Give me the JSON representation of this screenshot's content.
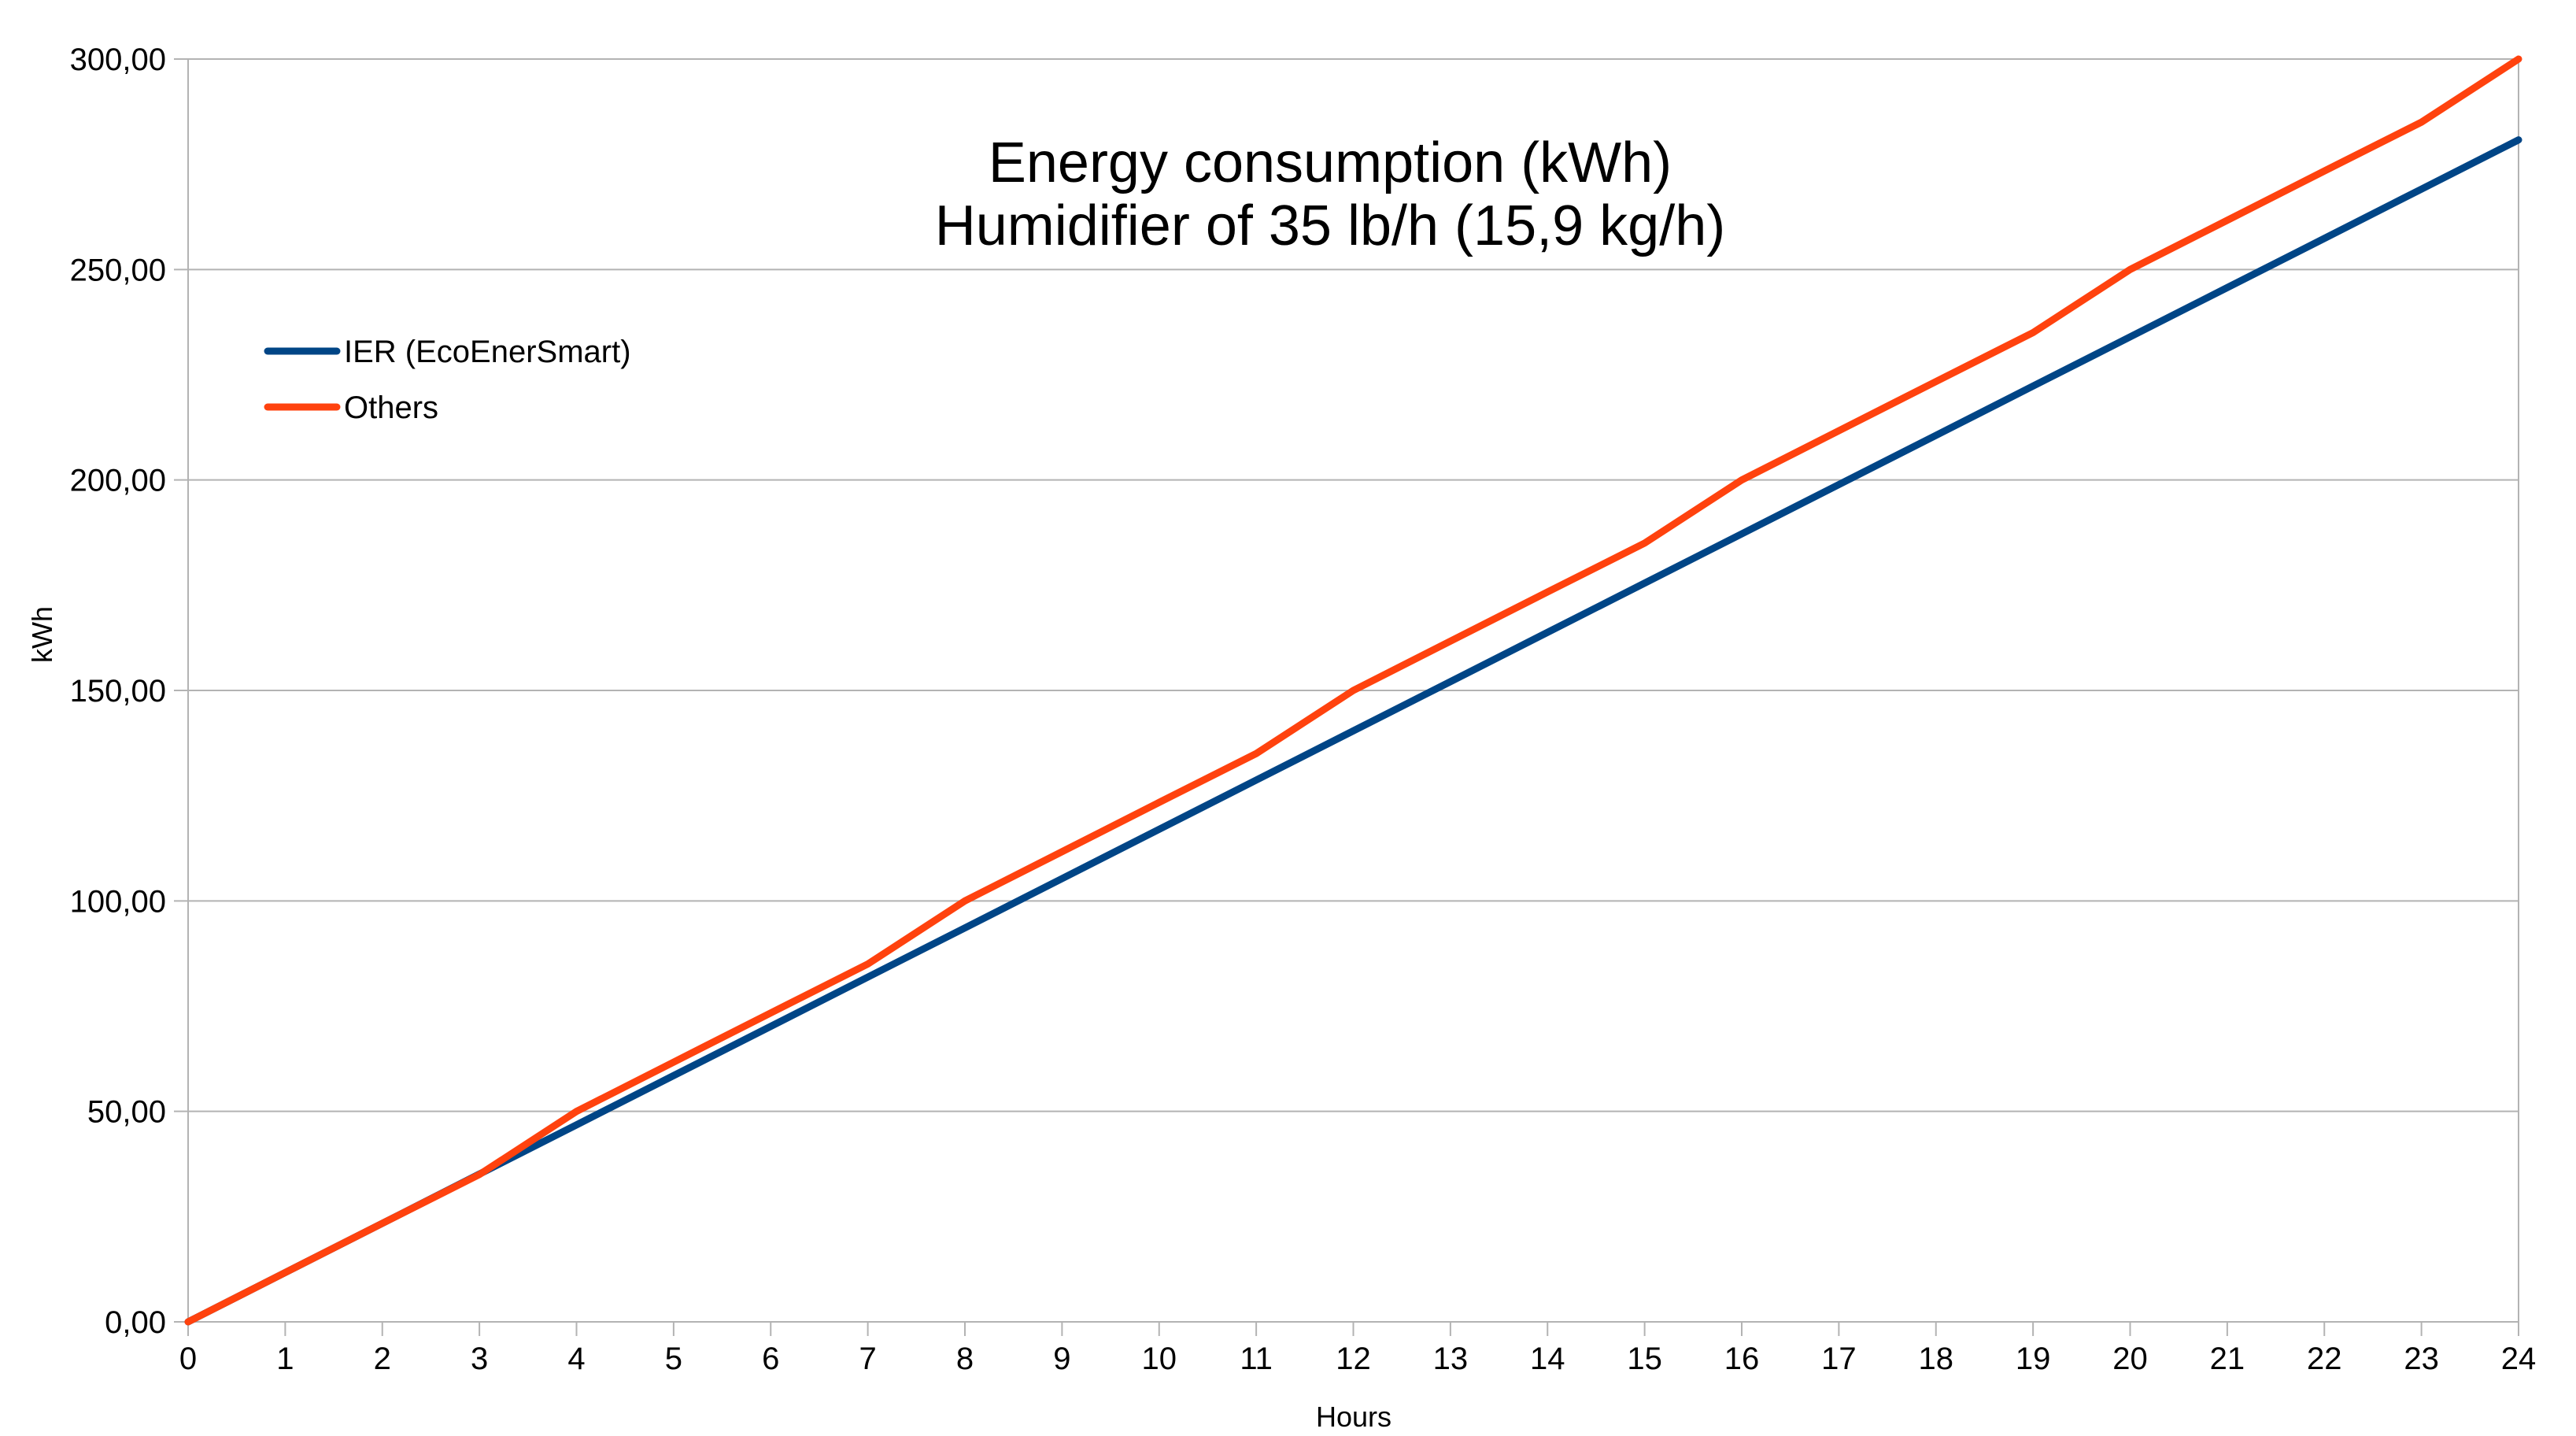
{
  "chart_data": {
    "type": "line",
    "title": [
      "Energy consumption (kWh)",
      "Humidifier of 35 lb/h (15,9 kg/h)"
    ],
    "xlabel": "Hours",
    "ylabel": "kWh",
    "x": [
      0,
      1,
      2,
      3,
      4,
      5,
      6,
      7,
      8,
      9,
      10,
      11,
      12,
      13,
      14,
      15,
      16,
      17,
      18,
      19,
      20,
      21,
      22,
      23,
      24
    ],
    "x_tick_labels": [
      "0",
      "1",
      "2",
      "3",
      "4",
      "5",
      "6",
      "7",
      "8",
      "9",
      "10",
      "11",
      "12",
      "13",
      "14",
      "15",
      "16",
      "17",
      "18",
      "19",
      "20",
      "21",
      "22",
      "23",
      "24"
    ],
    "xlim": [
      0,
      24
    ],
    "ylim": [
      0,
      300
    ],
    "y_ticks": [
      0,
      50,
      100,
      150,
      200,
      250,
      300
    ],
    "y_tick_labels": [
      "0,00",
      "50,00",
      "100,00",
      "150,00",
      "200,00",
      "250,00",
      "300,00"
    ],
    "grid": true,
    "legend_position": "top-left",
    "series": [
      {
        "name": "IER (EcoEnerSmart)",
        "color": "#004586",
        "values": [
          0,
          11.7,
          23.4,
          35.1,
          46.8,
          58.5,
          70.2,
          81.9,
          93.6,
          105.3,
          117,
          128.7,
          140.4,
          152.1,
          163.8,
          175.5,
          187.2,
          198.9,
          210.6,
          222.3,
          234,
          245.7,
          257.4,
          269.1,
          280.8
        ]
      },
      {
        "name": "Others",
        "color": "#ff420e",
        "values": [
          0,
          11.7,
          23.4,
          35,
          50,
          61.7,
          73.4,
          85,
          100,
          111.7,
          123.4,
          135,
          150,
          161.7,
          173.4,
          185,
          200,
          211.7,
          223.4,
          235,
          250,
          261.7,
          273.4,
          285,
          300
        ]
      }
    ]
  }
}
